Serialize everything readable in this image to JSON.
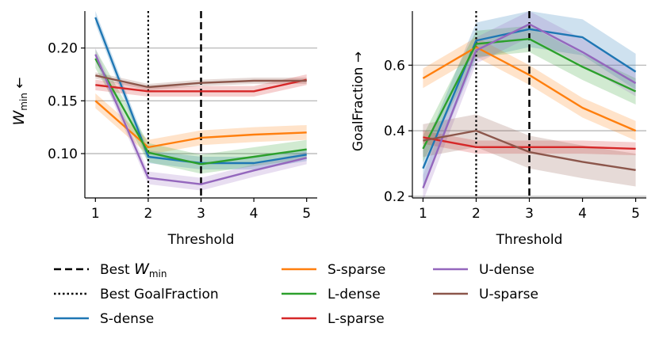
{
  "chart_data": [
    {
      "type": "line",
      "title": "",
      "xlabel": "Threshold",
      "ylabel": "W",
      "ylabel_sub": "min",
      "ylabel_arrow": "←",
      "x": [
        1,
        2,
        3,
        4,
        5
      ],
      "xticks": [
        "1",
        "2",
        "3",
        "4",
        "5"
      ],
      "yticks": [
        0.1,
        0.15,
        0.2
      ],
      "ytick_labels": [
        "0.10",
        "0.15",
        "0.20"
      ],
      "xlim": [
        0.8,
        5.2
      ],
      "ylim": [
        0.058,
        0.235
      ],
      "grid": "horizontal",
      "vlines": [
        {
          "x": 2,
          "style": "dotted",
          "ref": "best_goalfraction"
        },
        {
          "x": 3,
          "style": "dashed",
          "ref": "best_wmin"
        }
      ],
      "series": [
        {
          "name": "S-dense",
          "color": "#1f77b4",
          "values": [
            0.229,
            0.097,
            0.091,
            0.091,
            0.099
          ],
          "band": 0.006
        },
        {
          "name": "S-sparse",
          "color": "#ff7f0e",
          "values": [
            0.15,
            0.106,
            0.115,
            0.118,
            0.12
          ],
          "band": 0.007
        },
        {
          "name": "L-dense",
          "color": "#2ca02c",
          "values": [
            0.19,
            0.101,
            0.09,
            0.097,
            0.104
          ],
          "band": 0.009
        },
        {
          "name": "L-sparse",
          "color": "#d62728",
          "values": [
            0.165,
            0.159,
            0.159,
            0.159,
            0.17
          ],
          "band": 0.005
        },
        {
          "name": "U-dense",
          "color": "#9467bd",
          "values": [
            0.194,
            0.077,
            0.071,
            0.084,
            0.096
          ],
          "band": 0.006
        },
        {
          "name": "U-sparse",
          "color": "#8c564b",
          "values": [
            0.174,
            0.163,
            0.167,
            0.169,
            0.169
          ],
          "band": 0.003
        }
      ]
    },
    {
      "type": "line",
      "title": "",
      "xlabel": "Threshold",
      "ylabel": "GoalFraction →",
      "x": [
        1,
        2,
        3,
        4,
        5
      ],
      "xticks": [
        "1",
        "2",
        "3",
        "4",
        "5"
      ],
      "yticks": [
        0.2,
        0.4,
        0.6
      ],
      "ytick_labels": [
        "0.2",
        "0.4",
        "0.6"
      ],
      "xlim": [
        0.8,
        5.2
      ],
      "ylim": [
        0.195,
        0.765
      ],
      "grid": "horizontal",
      "vlines": [
        {
          "x": 2,
          "style": "dotted",
          "ref": "best_goalfraction"
        },
        {
          "x": 3,
          "style": "dashed",
          "ref": "best_wmin"
        }
      ],
      "series": [
        {
          "name": "S-dense",
          "color": "#1f77b4",
          "values": [
            0.285,
            0.675,
            0.71,
            0.685,
            0.58
          ],
          "band": 0.055
        },
        {
          "name": "S-sparse",
          "color": "#ff7f0e",
          "values": [
            0.56,
            0.655,
            0.57,
            0.47,
            0.4
          ],
          "band": 0.03
        },
        {
          "name": "L-dense",
          "color": "#2ca02c",
          "values": [
            0.345,
            0.665,
            0.68,
            0.595,
            0.52
          ],
          "band": 0.04
        },
        {
          "name": "L-sparse",
          "color": "#d62728",
          "values": [
            0.38,
            0.35,
            0.35,
            0.35,
            0.345
          ],
          "band": 0.02
        },
        {
          "name": "U-dense",
          "color": "#9467bd",
          "values": [
            0.225,
            0.645,
            0.725,
            0.64,
            0.545
          ],
          "band": 0.04
        },
        {
          "name": "U-sparse",
          "color": "#8c564b",
          "values": [
            0.37,
            0.4,
            0.335,
            0.305,
            0.28
          ],
          "band": 0.05
        }
      ]
    }
  ],
  "legend": {
    "items": [
      {
        "key": "best_wmin",
        "label": "Best ",
        "label_var": "W",
        "label_sub": "min",
        "style": "dashed",
        "color": "#000000"
      },
      {
        "key": "best_goalfraction",
        "label": "Best GoalFraction",
        "style": "dotted",
        "color": "#000000"
      },
      {
        "key": "s_dense",
        "label": "S-dense",
        "style": "solid",
        "color": "#1f77b4"
      },
      {
        "key": "s_sparse",
        "label": "S-sparse",
        "style": "solid",
        "color": "#ff7f0e"
      },
      {
        "key": "l_dense",
        "label": "L-dense",
        "style": "solid",
        "color": "#2ca02c"
      },
      {
        "key": "l_sparse",
        "label": "L-sparse",
        "style": "solid",
        "color": "#d62728"
      },
      {
        "key": "u_dense",
        "label": "U-dense",
        "style": "solid",
        "color": "#9467bd"
      },
      {
        "key": "u_sparse",
        "label": "U-sparse",
        "style": "solid",
        "color": "#8c564b"
      }
    ]
  }
}
